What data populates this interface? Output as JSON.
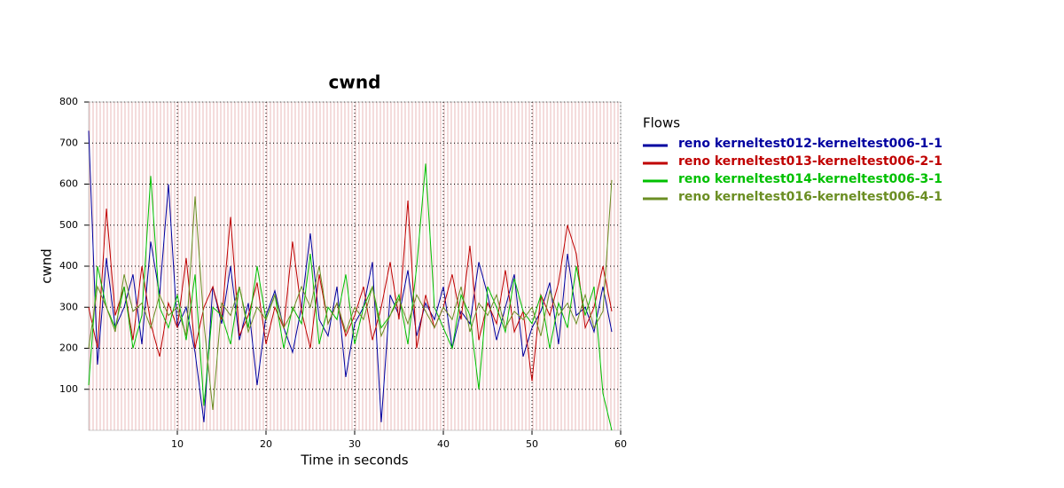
{
  "chart_data": {
    "type": "line",
    "title": "cwnd",
    "x_label": "Time in seconds",
    "y_label": "cwnd",
    "legend_title": "Flows",
    "x": [
      0,
      1,
      2,
      3,
      4,
      5,
      6,
      7,
      8,
      9,
      10,
      11,
      12,
      13,
      14,
      15,
      16,
      17,
      18,
      19,
      20,
      21,
      22,
      23,
      24,
      25,
      26,
      27,
      28,
      29,
      30,
      31,
      32,
      33,
      34,
      35,
      36,
      37,
      38,
      39,
      40,
      41,
      42,
      43,
      44,
      45,
      46,
      47,
      48,
      49,
      50,
      51,
      52,
      53,
      54,
      55,
      56,
      57,
      58,
      59
    ],
    "series": [
      {
        "name": "reno kerneltest012-kerneltest006-1-1",
        "color": "#0000a0",
        "values": [
          730,
          160,
          420,
          250,
          300,
          380,
          210,
          460,
          330,
          600,
          250,
          300,
          190,
          20,
          350,
          260,
          400,
          220,
          310,
          110,
          280,
          340,
          250,
          190,
          300,
          480,
          270,
          230,
          350,
          130,
          260,
          300,
          410,
          20,
          330,
          280,
          390,
          230,
          310,
          270,
          350,
          200,
          290,
          260,
          410,
          330,
          220,
          300,
          380,
          180,
          250,
          290,
          360,
          210,
          430,
          280,
          300,
          240,
          350,
          240
        ]
      },
      {
        "name": "reno kerneltest013-kerneltest006-2-1",
        "color": "#c00000",
        "values": [
          300,
          200,
          540,
          280,
          350,
          220,
          400,
          260,
          180,
          310,
          250,
          420,
          200,
          300,
          350,
          270,
          520,
          230,
          280,
          360,
          210,
          300,
          250,
          460,
          290,
          200,
          380,
          260,
          310,
          230,
          280,
          350,
          220,
          300,
          410,
          270,
          560,
          200,
          330,
          250,
          300,
          380,
          270,
          450,
          220,
          310,
          260,
          390,
          240,
          290,
          120,
          330,
          280,
          360,
          500,
          430,
          250,
          300,
          400,
          290
        ]
      },
      {
        "name": "reno kerneltest014-kerneltest006-3-1",
        "color": "#00c000",
        "values": [
          110,
          400,
          300,
          250,
          350,
          200,
          280,
          620,
          300,
          250,
          330,
          220,
          380,
          60,
          300,
          280,
          210,
          350,
          250,
          400,
          270,
          330,
          200,
          300,
          260,
          430,
          210,
          300,
          270,
          380,
          210,
          300,
          350,
          250,
          280,
          330,
          210,
          400,
          650,
          300,
          250,
          200,
          330,
          280,
          100,
          350,
          300,
          240,
          370,
          290,
          260,
          330,
          200,
          310,
          250,
          400,
          280,
          350,
          90,
          0
        ]
      },
      {
        "name": "reno kerneltest016-kerneltest006-4-1",
        "color": "#6b8e23",
        "values": [
          200,
          350,
          300,
          240,
          380,
          290,
          310,
          250,
          330,
          280,
          300,
          230,
          570,
          260,
          50,
          310,
          280,
          350,
          240,
          300,
          270,
          330,
          250,
          290,
          350,
          300,
          400,
          260,
          310,
          240,
          300,
          270,
          350,
          230,
          280,
          320,
          260,
          330,
          290,
          250,
          300,
          270,
          350,
          240,
          310,
          280,
          330,
          250,
          290,
          270,
          300,
          230,
          340,
          280,
          310,
          260,
          330,
          250,
          290,
          610
        ]
      }
    ],
    "xlim": [
      0,
      60
    ],
    "xticks": [
      10,
      20,
      30,
      40,
      50,
      60
    ],
    "ylim": [
      0,
      800
    ],
    "yticks": [
      100,
      200,
      300,
      400,
      500,
      600,
      700,
      800
    ],
    "grid": true
  }
}
